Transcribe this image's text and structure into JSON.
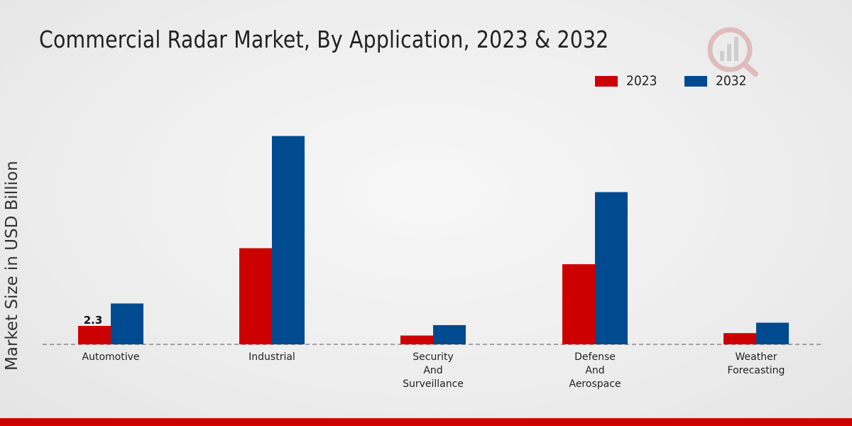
{
  "chart_data": {
    "type": "bar",
    "title": "Commercial Radar Market, By Application, 2023 & 2032",
    "xlabel": "",
    "ylabel": "Market Size in USD Billion",
    "categories": [
      [
        "Automotive"
      ],
      [
        "Industrial"
      ],
      [
        "Security",
        "And",
        "Surveillance"
      ],
      [
        "Defense",
        "And",
        "Aerospace"
      ],
      [
        "Weather",
        "Forecasting"
      ]
    ],
    "series": [
      {
        "name": "2023",
        "color": "#cc0000",
        "values": [
          2.3,
          12.0,
          1.1,
          10.0,
          1.4
        ]
      },
      {
        "name": "2032",
        "color": "#004a8f",
        "values": [
          5.1,
          26.0,
          2.4,
          19.0,
          2.7
        ]
      }
    ],
    "data_labels": [
      {
        "series": 0,
        "index": 0,
        "text": "2.3"
      }
    ],
    "ylim": [
      0,
      35
    ],
    "grid": false,
    "legend_position": "top-right"
  },
  "legend": {
    "items": [
      {
        "label": "2023",
        "color": "#cc0000"
      },
      {
        "label": "2032",
        "color": "#004a8f"
      }
    ]
  },
  "branding": {
    "logo_icon": "market-research-logo-icon",
    "accent_bar_color": "#cc0000"
  }
}
